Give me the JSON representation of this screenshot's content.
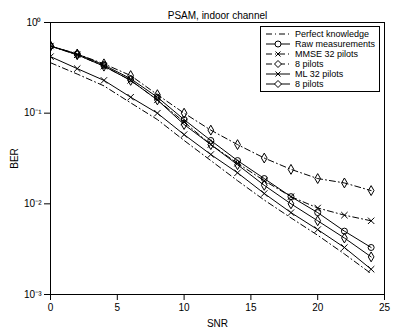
{
  "chart_data": {
    "type": "line",
    "title": "PSAM, indoor channel",
    "x_label": "SNR",
    "y_label": "BER",
    "x": [
      0,
      2,
      4,
      6,
      8,
      10,
      12,
      14,
      16,
      18,
      20,
      22,
      24
    ],
    "series": [
      {
        "name": "Perfect knowledge",
        "color": "#000000",
        "marker": "none",
        "line_style": "dashdot",
        "values": [
          0.36,
          0.27,
          0.2,
          0.13,
          0.085,
          0.05,
          0.03,
          0.018,
          0.011,
          0.007,
          0.0045,
          0.0028,
          0.0017
        ]
      },
      {
        "name": "Raw measurements",
        "color": "#000000",
        "marker": "circle",
        "line_style": "solid",
        "values": [
          0.55,
          0.45,
          0.34,
          0.24,
          0.15,
          0.085,
          0.05,
          0.03,
          0.019,
          0.012,
          0.008,
          0.005,
          0.0033
        ]
      },
      {
        "name": "MMSE 32 pilots",
        "color": "#000000",
        "marker": "x",
        "line_style": "dashdot",
        "values": [
          0.55,
          0.44,
          0.33,
          0.23,
          0.14,
          0.08,
          0.045,
          0.028,
          0.018,
          0.012,
          0.009,
          0.0075,
          0.0065
        ]
      },
      {
        "name": "8 pilots",
        "color": "#000000",
        "marker": "diamond",
        "line_style": "dashdot",
        "values": [
          0.55,
          0.45,
          0.35,
          0.26,
          0.16,
          0.1,
          0.065,
          0.045,
          0.032,
          0.024,
          0.019,
          0.017,
          0.014
        ]
      },
      {
        "name": "ML 32 pilots",
        "color": "#000000",
        "marker": "x",
        "line_style": "solid",
        "values": [
          0.42,
          0.31,
          0.23,
          0.15,
          0.1,
          0.058,
          0.035,
          0.022,
          0.013,
          0.008,
          0.0052,
          0.0033,
          0.0019
        ]
      },
      {
        "name": "8 pilots",
        "color": "#000000",
        "marker": "diamond",
        "line_style": "solid",
        "values": [
          0.55,
          0.44,
          0.33,
          0.23,
          0.14,
          0.075,
          0.045,
          0.027,
          0.016,
          0.01,
          0.0065,
          0.0042,
          0.0026
        ]
      }
    ],
    "xlim": [
      0,
      25
    ],
    "xticks": [
      0,
      5,
      10,
      15,
      20,
      25
    ],
    "ylim": [
      0.001,
      1
    ],
    "yticks": [
      {
        "value": 0.001,
        "label": "10⁻³"
      },
      {
        "value": 0.01,
        "label": "10⁻²"
      },
      {
        "value": 0.1,
        "label": "10⁻¹"
      },
      {
        "value": 1,
        "label": "10⁰"
      }
    ],
    "log": "y",
    "grid": false,
    "legend": "upper right"
  }
}
